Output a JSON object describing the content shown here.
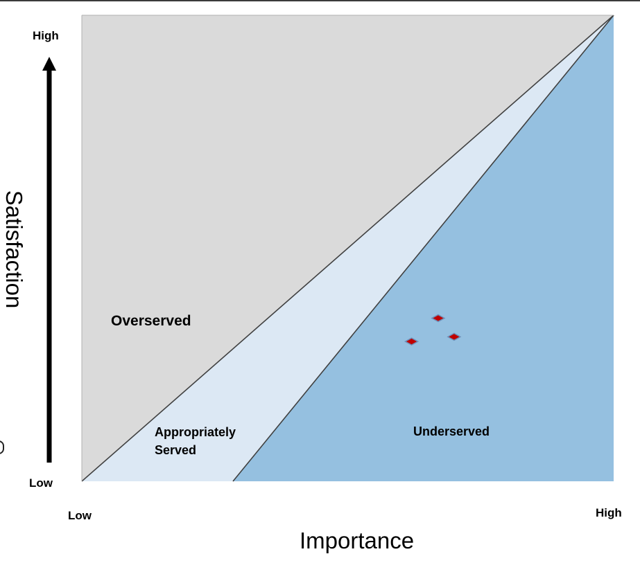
{
  "colors": {
    "overserved": "#dadada",
    "appropriate": "#dce8f4",
    "underserved": "#95c0e0",
    "boundary": "#404040",
    "point_fill": "#c00000",
    "point_stroke": "#6f8fb8"
  },
  "y_axis": {
    "title": "Satisfaction",
    "high": "High",
    "low": "Low"
  },
  "x_axis": {
    "title": "Importance",
    "low": "Low",
    "high": "High"
  },
  "regions": {
    "overserved": "Overserved",
    "appropriate_line1": "Appropriately",
    "appropriate_line2": "Served",
    "underserved": "Underserved"
  },
  "points": [
    {
      "importance": 0.67,
      "satisfaction": 0.35
    },
    {
      "importance": 0.7,
      "satisfaction": 0.31
    },
    {
      "importance": 0.62,
      "satisfaction": 0.3
    }
  ]
}
